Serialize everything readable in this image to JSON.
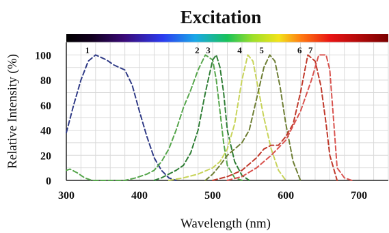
{
  "chart_data": {
    "type": "line",
    "title": "Excitation",
    "xlabel": "Wavelength (nm)",
    "ylabel": "Relative Intensity (%)",
    "xlim": [
      300,
      740
    ],
    "ylim": [
      0,
      110
    ],
    "x_ticks": [
      "300",
      "400",
      "500",
      "600",
      "700"
    ],
    "y_ticks": [
      "0",
      "20",
      "40",
      "60",
      "80",
      "100"
    ],
    "grid": true,
    "spectrum_bar": true,
    "series": [
      {
        "name": "1",
        "color": "#2f3a86",
        "points": [
          [
            300,
            38
          ],
          [
            310,
            60
          ],
          [
            320,
            80
          ],
          [
            330,
            95
          ],
          [
            340,
            100
          ],
          [
            355,
            96
          ],
          [
            365,
            92
          ],
          [
            380,
            88
          ],
          [
            390,
            76
          ],
          [
            400,
            55
          ],
          [
            410,
            35
          ],
          [
            420,
            18
          ],
          [
            430,
            8
          ],
          [
            440,
            2
          ],
          [
            450,
            0
          ]
        ]
      },
      {
        "name": "2",
        "color": "#56a64c",
        "points": [
          [
            300,
            8
          ],
          [
            305,
            9
          ],
          [
            315,
            6
          ],
          [
            325,
            2
          ],
          [
            335,
            0
          ],
          [
            380,
            0
          ],
          [
            395,
            2
          ],
          [
            410,
            5
          ],
          [
            420,
            8
          ],
          [
            430,
            15
          ],
          [
            440,
            25
          ],
          [
            450,
            40
          ],
          [
            460,
            58
          ],
          [
            470,
            72
          ],
          [
            480,
            88
          ],
          [
            490,
            100
          ],
          [
            500,
            96
          ],
          [
            505,
            80
          ],
          [
            510,
            55
          ],
          [
            515,
            30
          ],
          [
            520,
            12
          ],
          [
            530,
            2
          ],
          [
            540,
            0
          ]
        ]
      },
      {
        "name": "3",
        "color": "#2f7e35",
        "points": [
          [
            420,
            0
          ],
          [
            430,
            2
          ],
          [
            440,
            5
          ],
          [
            450,
            8
          ],
          [
            460,
            12
          ],
          [
            470,
            22
          ],
          [
            480,
            40
          ],
          [
            490,
            70
          ],
          [
            500,
            96
          ],
          [
            505,
            100
          ],
          [
            510,
            90
          ],
          [
            515,
            70
          ],
          [
            520,
            40
          ],
          [
            530,
            15
          ],
          [
            540,
            4
          ],
          [
            550,
            0
          ]
        ]
      },
      {
        "name": "4",
        "color": "#c8d45a",
        "points": [
          [
            440,
            0
          ],
          [
            460,
            2
          ],
          [
            480,
            5
          ],
          [
            500,
            10
          ],
          [
            510,
            15
          ],
          [
            520,
            25
          ],
          [
            530,
            45
          ],
          [
            540,
            80
          ],
          [
            548,
            100
          ],
          [
            555,
            95
          ],
          [
            560,
            80
          ],
          [
            570,
            50
          ],
          [
            580,
            25
          ],
          [
            590,
            8
          ],
          [
            600,
            0
          ]
        ]
      },
      {
        "name": "5",
        "color": "#6e7e34",
        "points": [
          [
            490,
            0
          ],
          [
            500,
            5
          ],
          [
            510,
            12
          ],
          [
            520,
            20
          ],
          [
            530,
            25
          ],
          [
            540,
            30
          ],
          [
            550,
            40
          ],
          [
            560,
            65
          ],
          [
            570,
            90
          ],
          [
            578,
            100
          ],
          [
            585,
            95
          ],
          [
            592,
            75
          ],
          [
            600,
            45
          ],
          [
            610,
            15
          ],
          [
            620,
            0
          ]
        ]
      },
      {
        "name": "6",
        "color": "#c0392b",
        "points": [
          [
            500,
            0
          ],
          [
            520,
            3
          ],
          [
            540,
            8
          ],
          [
            560,
            18
          ],
          [
            570,
            25
          ],
          [
            580,
            28
          ],
          [
            590,
            28
          ],
          [
            600,
            35
          ],
          [
            610,
            45
          ],
          [
            620,
            70
          ],
          [
            630,
            100
          ],
          [
            640,
            95
          ],
          [
            648,
            75
          ],
          [
            655,
            45
          ],
          [
            660,
            20
          ],
          [
            670,
            0
          ]
        ]
      },
      {
        "name": "7",
        "color": "#d9534f",
        "points": [
          [
            520,
            0
          ],
          [
            540,
            3
          ],
          [
            560,
            10
          ],
          [
            580,
            20
          ],
          [
            600,
            32
          ],
          [
            620,
            55
          ],
          [
            635,
            80
          ],
          [
            645,
            100
          ],
          [
            655,
            100
          ],
          [
            660,
            88
          ],
          [
            665,
            50
          ],
          [
            670,
            10
          ],
          [
            680,
            2
          ],
          [
            690,
            0
          ]
        ]
      }
    ]
  }
}
